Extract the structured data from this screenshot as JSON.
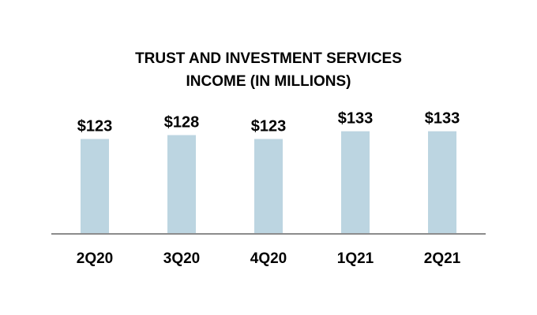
{
  "chart_data": {
    "type": "bar",
    "title_lines": [
      "TRUST AND INVESTMENT SERVICES",
      "INCOME (IN MILLIONS)"
    ],
    "categories": [
      "2Q20",
      "3Q20",
      "4Q20",
      "1Q21",
      "2Q21"
    ],
    "values": [
      123,
      128,
      123,
      133,
      133
    ],
    "value_labels": [
      "$123",
      "$128",
      "$123",
      "$133",
      "$133"
    ],
    "xlabel": "",
    "ylabel": "",
    "grid": false,
    "legend": "none",
    "colors": {
      "bar": "#bcd5e1",
      "axis": "#8c8c8c"
    }
  }
}
